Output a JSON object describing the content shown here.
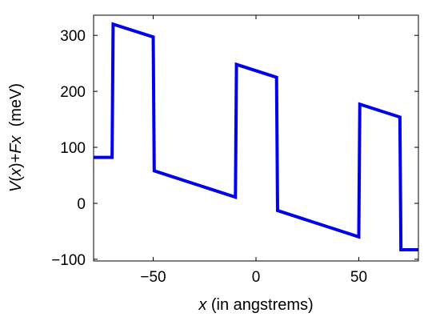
{
  "chart_data": {
    "type": "line",
    "title": "",
    "xlabel": {
      "italic": "x",
      "rest": " (in angstrems)"
    },
    "ylabel": {
      "italic_v": "V",
      "paren_open": "(",
      "italic_x": "x",
      "mid": ")+",
      "italic_fx": "Fx",
      "unit": "  (meV)"
    },
    "xlim": [
      -79,
      79
    ],
    "ylim": [
      -103,
      336
    ],
    "xticks": [
      -50,
      0,
      50
    ],
    "xtick_labels": [
      "−50",
      "0",
      "50"
    ],
    "yticks": [
      -100,
      0,
      100,
      200,
      300
    ],
    "ytick_labels": [
      "−100",
      "0",
      "100",
      "200",
      "300"
    ],
    "grid": false,
    "legend": "none",
    "series": [
      {
        "color": "#0000ee",
        "x": [
          -79,
          -70,
          -69.5,
          -50,
          -49.5,
          -10,
          -9.5,
          10,
          10.5,
          50,
          50.5,
          70,
          70.5,
          79
        ],
        "y": [
          82,
          82,
          320,
          297,
          58,
          11,
          248,
          225,
          -13,
          -60,
          177,
          154,
          -83,
          -83
        ]
      }
    ]
  }
}
